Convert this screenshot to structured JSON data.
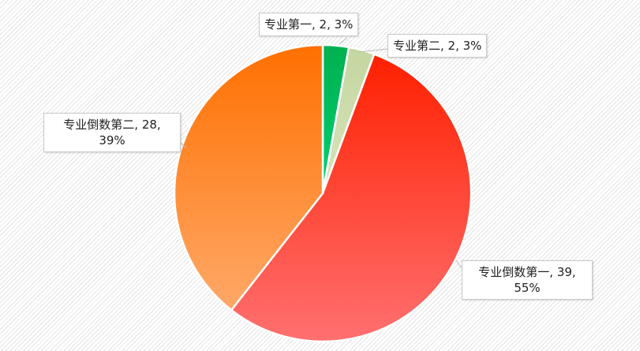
{
  "chart_data": {
    "type": "pie",
    "start_angle": "top, clockwise",
    "slices": [
      {
        "name": "专业第一",
        "value": 2,
        "percent": "3%",
        "label": "专业第一, 2, 3%",
        "color_top": "#00b050",
        "color_bottom": "#00d070"
      },
      {
        "name": "专业第二",
        "value": 2,
        "percent": "3%",
        "label": "专业第二, 2, 3%",
        "color_top": "#c4d6a0",
        "color_bottom": "#d8e4bc"
      },
      {
        "name": "专业倒数第一",
        "value": 39,
        "percent": "55%",
        "label": "专业倒数第一, 39, 55%",
        "color_top": "#ff2000",
        "color_bottom": "#ff7070"
      },
      {
        "name": "专业倒数第二",
        "value": 28,
        "percent": "39%",
        "label": "专业倒数第二, 28, 39%",
        "color_top": "#ff7000",
        "color_bottom": "#ffa868"
      }
    ],
    "legend": "none"
  }
}
